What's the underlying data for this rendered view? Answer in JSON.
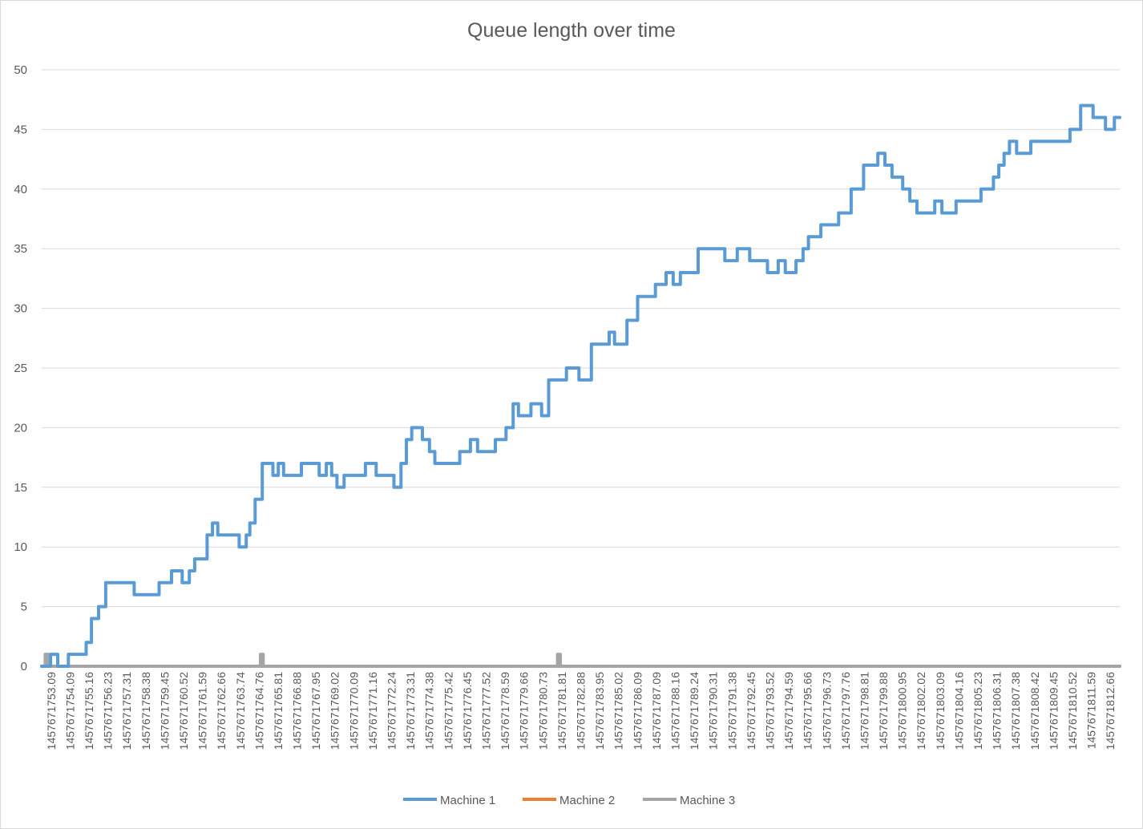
{
  "chart_data": {
    "type": "line",
    "title": "Queue length over time",
    "xlabel": "",
    "ylabel": "",
    "ylim": [
      0,
      50
    ],
    "yticks": [
      "0",
      "5",
      "10",
      "15",
      "20",
      "25",
      "30",
      "35",
      "40",
      "45",
      "50"
    ],
    "x_tick_labels": [
      "1457671753.09",
      "1457671754.09",
      "1457671755.16",
      "1457671756.23",
      "1457671757.31",
      "1457671758.38",
      "1457671759.45",
      "1457671760.52",
      "1457671761.59",
      "1457671762.66",
      "1457671763.74",
      "1457671764.76",
      "1457671765.81",
      "1457671766.88",
      "1457671767.95",
      "1457671769.02",
      "1457671770.09",
      "1457671771.16",
      "1457671772.24",
      "1457671773.31",
      "1457671774.38",
      "1457671775.42",
      "1457671776.45",
      "1457671777.52",
      "1457671778.59",
      "1457671779.66",
      "1457671780.73",
      "1457671781.81",
      "1457671782.88",
      "1457671783.95",
      "1457671785.02",
      "1457671786.09",
      "1457671787.09",
      "1457671788.16",
      "1457671789.24",
      "1457671790.31",
      "1457671791.38",
      "1457671792.45",
      "1457671793.52",
      "1457671794.59",
      "1457671795.66",
      "1457671796.73",
      "1457671797.76",
      "1457671798.81",
      "1457671799.88",
      "1457671800.95",
      "1457671802.02",
      "1457671803.09",
      "1457671804.16",
      "1457671805.23",
      "1457671806.31",
      "1457671807.38",
      "1457671808.42",
      "1457671809.45",
      "1457671810.52",
      "1457671811.59",
      "1457671812.66"
    ],
    "grid": true,
    "legend_position": "bottom",
    "series": [
      {
        "name": "Machine 1",
        "color": "#5b9bd5",
        "step": true,
        "points": [
          [
            0.0,
            0
          ],
          [
            0.5,
            1
          ],
          [
            0.9,
            0
          ],
          [
            1.5,
            1
          ],
          [
            2.5,
            2
          ],
          [
            2.8,
            4
          ],
          [
            3.2,
            5
          ],
          [
            3.6,
            7
          ],
          [
            5.2,
            6
          ],
          [
            6.6,
            7
          ],
          [
            7.3,
            8
          ],
          [
            7.9,
            7
          ],
          [
            8.3,
            8
          ],
          [
            8.6,
            9
          ],
          [
            9.3,
            11
          ],
          [
            9.6,
            12
          ],
          [
            9.9,
            11
          ],
          [
            11.1,
            10
          ],
          [
            11.5,
            11
          ],
          [
            11.7,
            12
          ],
          [
            12.0,
            14
          ],
          [
            12.4,
            17
          ],
          [
            13.0,
            16
          ],
          [
            13.3,
            17
          ],
          [
            13.6,
            16
          ],
          [
            14.6,
            17
          ],
          [
            15.6,
            16
          ],
          [
            16.0,
            17
          ],
          [
            16.3,
            16
          ],
          [
            16.6,
            15
          ],
          [
            17.0,
            16
          ],
          [
            18.2,
            17
          ],
          [
            18.8,
            16
          ],
          [
            19.8,
            15
          ],
          [
            20.2,
            17
          ],
          [
            20.5,
            19
          ],
          [
            20.8,
            20
          ],
          [
            21.4,
            19
          ],
          [
            21.8,
            18
          ],
          [
            22.1,
            17
          ],
          [
            23.5,
            18
          ],
          [
            24.1,
            19
          ],
          [
            24.5,
            18
          ],
          [
            25.5,
            19
          ],
          [
            26.1,
            20
          ],
          [
            26.5,
            22
          ],
          [
            26.8,
            21
          ],
          [
            27.5,
            22
          ],
          [
            28.1,
            21
          ],
          [
            28.5,
            24
          ],
          [
            29.5,
            25
          ],
          [
            30.2,
            24
          ],
          [
            30.9,
            27
          ],
          [
            31.9,
            28
          ],
          [
            32.2,
            27
          ],
          [
            32.9,
            29
          ],
          [
            33.5,
            31
          ],
          [
            34.5,
            32
          ],
          [
            35.1,
            33
          ],
          [
            35.5,
            32
          ],
          [
            35.9,
            33
          ],
          [
            36.9,
            35
          ],
          [
            38.4,
            34
          ],
          [
            39.1,
            35
          ],
          [
            39.8,
            34
          ],
          [
            40.8,
            33
          ],
          [
            41.4,
            34
          ],
          [
            41.8,
            33
          ],
          [
            42.4,
            34
          ],
          [
            42.8,
            35
          ],
          [
            43.1,
            36
          ],
          [
            43.8,
            37
          ],
          [
            44.8,
            38
          ],
          [
            45.5,
            40
          ],
          [
            46.2,
            42
          ],
          [
            47.0,
            43
          ],
          [
            47.4,
            42
          ],
          [
            47.8,
            41
          ],
          [
            48.4,
            40
          ],
          [
            48.8,
            39
          ],
          [
            49.2,
            38
          ],
          [
            50.2,
            39
          ],
          [
            50.6,
            38
          ],
          [
            51.4,
            39
          ],
          [
            52.8,
            40
          ],
          [
            53.5,
            41
          ],
          [
            53.8,
            42
          ],
          [
            54.1,
            43
          ],
          [
            54.4,
            44
          ],
          [
            54.8,
            43
          ],
          [
            55.6,
            44
          ],
          [
            57.8,
            45
          ],
          [
            58.4,
            47
          ],
          [
            59.1,
            46
          ],
          [
            59.8,
            45
          ],
          [
            60.3,
            46
          ],
          [
            60.6,
            46
          ]
        ]
      },
      {
        "name": "Machine 2",
        "color": "#ed7d31",
        "step": true,
        "points": [
          [
            0.0,
            0
          ],
          [
            60.6,
            0
          ]
        ]
      },
      {
        "name": "Machine 3",
        "color": "#a5a5a5",
        "step": true,
        "points": [
          [
            0.0,
            0
          ],
          [
            0.2,
            1
          ],
          [
            0.35,
            0
          ],
          [
            12.3,
            1
          ],
          [
            12.45,
            0
          ],
          [
            29.0,
            1
          ],
          [
            29.15,
            0
          ],
          [
            60.6,
            0
          ]
        ]
      }
    ]
  }
}
